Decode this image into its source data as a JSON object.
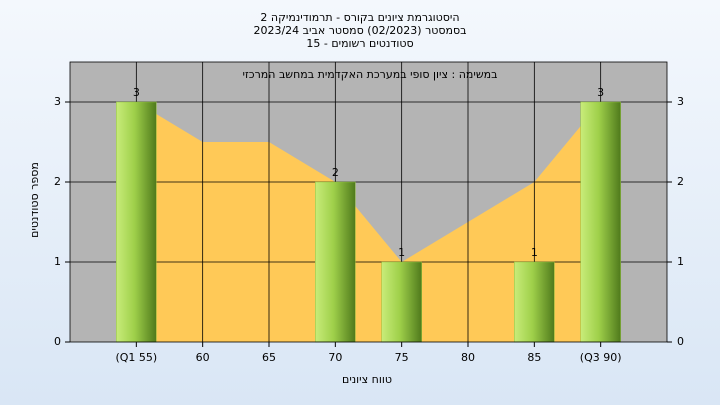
{
  "chart_data": {
    "type": "bar",
    "title": "היסטוגרמת ציונים בקורס - תרמודינמיקה 2",
    "subtitle": "בסמסטר  (02/2023)  סמסטר אביב 2023/24",
    "subtitle2": "סטודנטים רשומים - 15",
    "annotation": "במשימה : ציון סופי במערכת האקדמית במחשב המרכזי",
    "x_label": "טווח ציונים",
    "y_label": "מספר סטודנטים",
    "categories": [
      "(Q1 55)",
      "60",
      "65",
      "70",
      "75",
      "80",
      "85",
      "(Q3 90)"
    ],
    "values": [
      3,
      null,
      null,
      2,
      1,
      null,
      1,
      3
    ],
    "color": "#8fc03c",
    "area": {
      "color": "#ffc957",
      "values": [
        3,
        2.5,
        2.5,
        2,
        1,
        1.5,
        2,
        3
      ]
    },
    "ylim": [
      0,
      3.5
    ],
    "yticks": [
      0,
      1,
      2,
      3
    ],
    "grid": true
  }
}
